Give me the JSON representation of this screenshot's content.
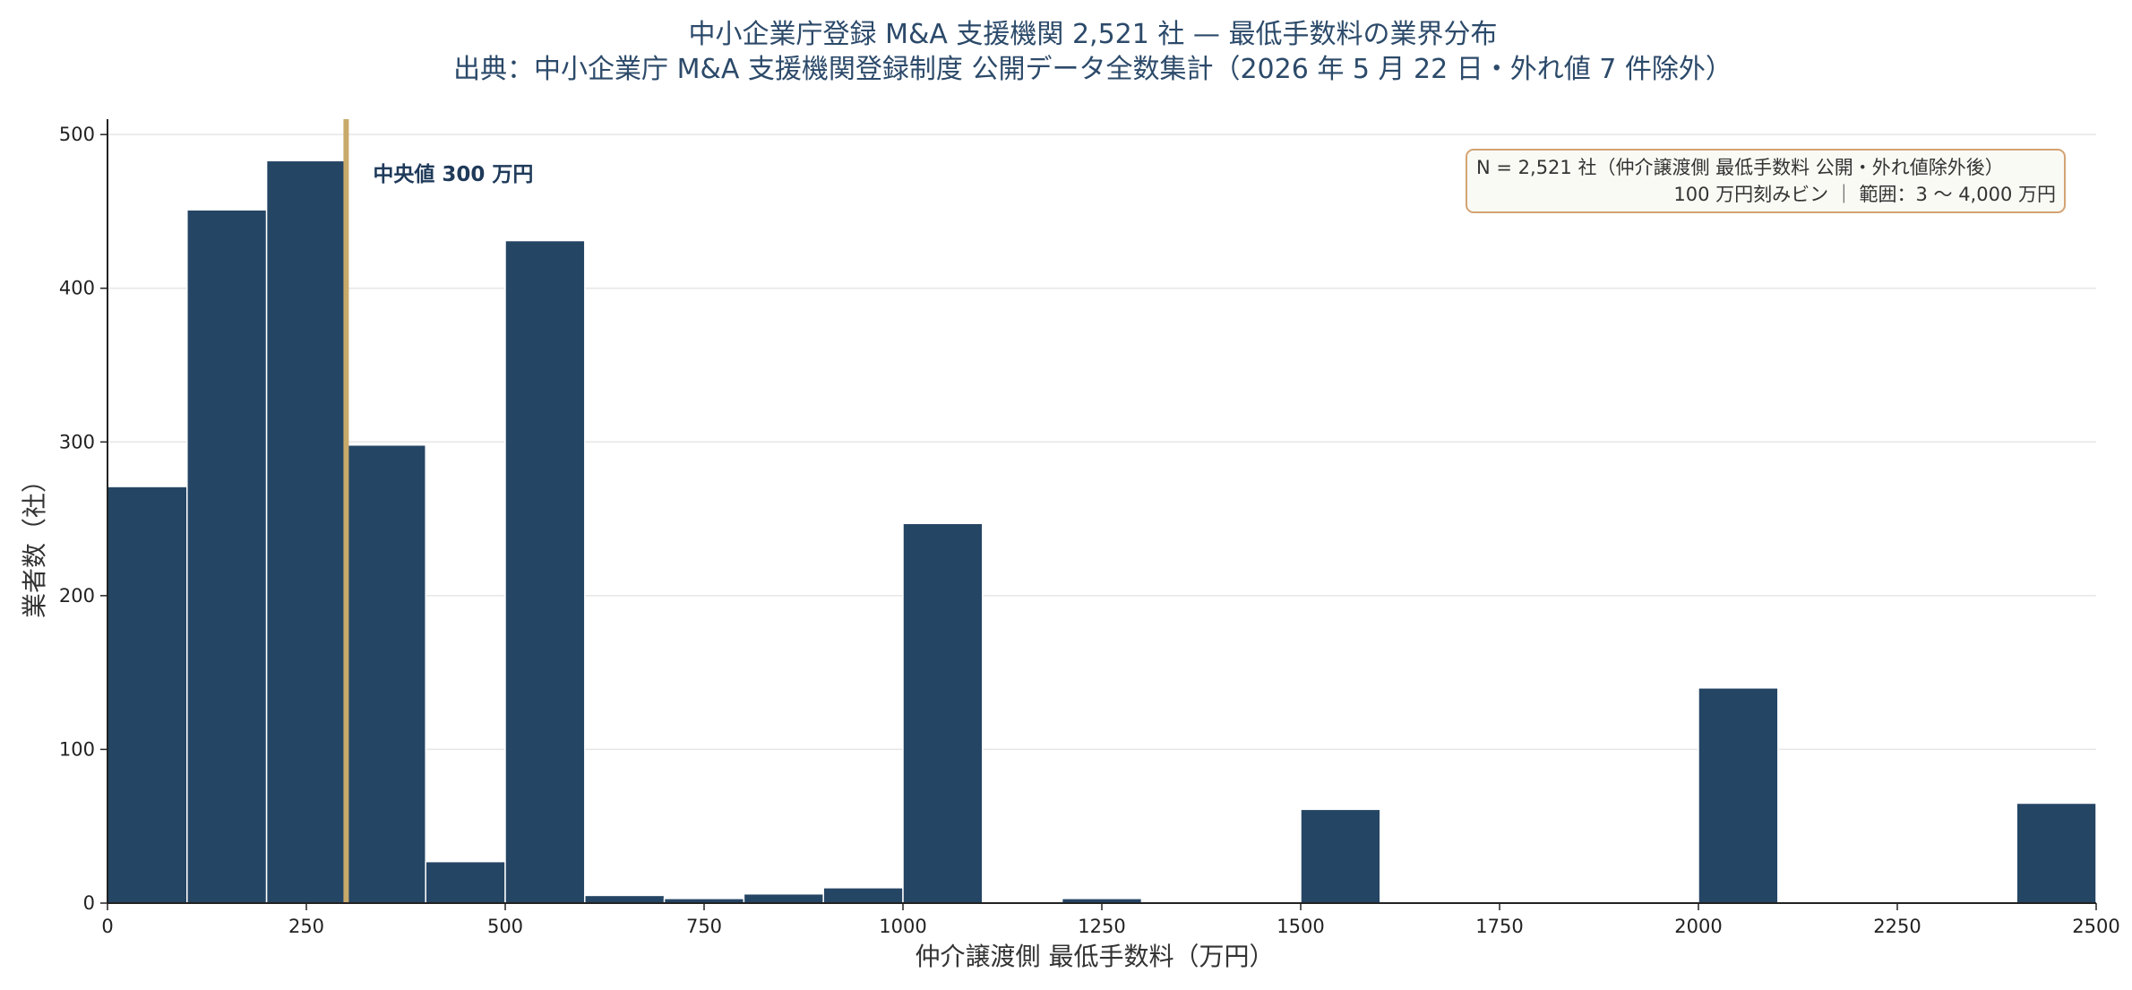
{
  "chart_data": {
    "type": "bar",
    "title": "中小企業庁登録 M&A 支援機関 2,521 社 — 最低手数料の業界分布",
    "subtitle": "出典：中小企業庁 M&A 支援機関登録制度 公開データ全数集計（2026 年 5 月 22 日・外れ値 7 件除外）",
    "xlabel": "仲介譲渡側 最低手数料（万円）",
    "ylabel": "業者数（社）",
    "xlim": [
      0,
      2500
    ],
    "ylim": [
      0,
      510
    ],
    "x_ticks": [
      0,
      250,
      500,
      750,
      1000,
      1250,
      1500,
      1750,
      2000,
      2250,
      2500
    ],
    "y_ticks": [
      0,
      100,
      200,
      300,
      400,
      500
    ],
    "bin_width": 100,
    "bins": [
      {
        "start": 0,
        "end": 100,
        "count": 271
      },
      {
        "start": 100,
        "end": 200,
        "count": 451
      },
      {
        "start": 200,
        "end": 300,
        "count": 483
      },
      {
        "start": 300,
        "end": 400,
        "count": 298
      },
      {
        "start": 400,
        "end": 500,
        "count": 27
      },
      {
        "start": 500,
        "end": 600,
        "count": 431
      },
      {
        "start": 600,
        "end": 700,
        "count": 5
      },
      {
        "start": 700,
        "end": 800,
        "count": 3
      },
      {
        "start": 800,
        "end": 900,
        "count": 6
      },
      {
        "start": 900,
        "end": 1000,
        "count": 10
      },
      {
        "start": 1000,
        "end": 1100,
        "count": 247
      },
      {
        "start": 1100,
        "end": 1200,
        "count": 0
      },
      {
        "start": 1200,
        "end": 1300,
        "count": 3
      },
      {
        "start": 1300,
        "end": 1400,
        "count": 0
      },
      {
        "start": 1400,
        "end": 1500,
        "count": 0
      },
      {
        "start": 1500,
        "end": 1600,
        "count": 61
      },
      {
        "start": 1600,
        "end": 1700,
        "count": 0
      },
      {
        "start": 1700,
        "end": 1800,
        "count": 0
      },
      {
        "start": 1800,
        "end": 1900,
        "count": 0
      },
      {
        "start": 1900,
        "end": 2000,
        "count": 0
      },
      {
        "start": 2000,
        "end": 2100,
        "count": 140
      },
      {
        "start": 2100,
        "end": 2200,
        "count": 0
      },
      {
        "start": 2200,
        "end": 2300,
        "count": 0
      },
      {
        "start": 2300,
        "end": 2400,
        "count": 0
      },
      {
        "start": 2400,
        "end": 2500,
        "count": 65
      }
    ],
    "median": {
      "value": 300,
      "label": "中央値 300 万円"
    },
    "info_box": {
      "line1": "N = 2,521 社（仲介譲渡側 最低手数料 公開・外れ値除外後）",
      "line2": "100 万円刻みビン ｜ 範囲：3 〜 4,000 万円",
      "placement": "top-right"
    },
    "grid": "y-horizontal",
    "colors": {
      "bar": "#254564",
      "bar_edge": "#ffffff",
      "median_line": "#c9a96a",
      "grid": "#e6e6e6",
      "info_box_border": "#d4a373",
      "info_box_fill": "#fafaf5"
    }
  }
}
